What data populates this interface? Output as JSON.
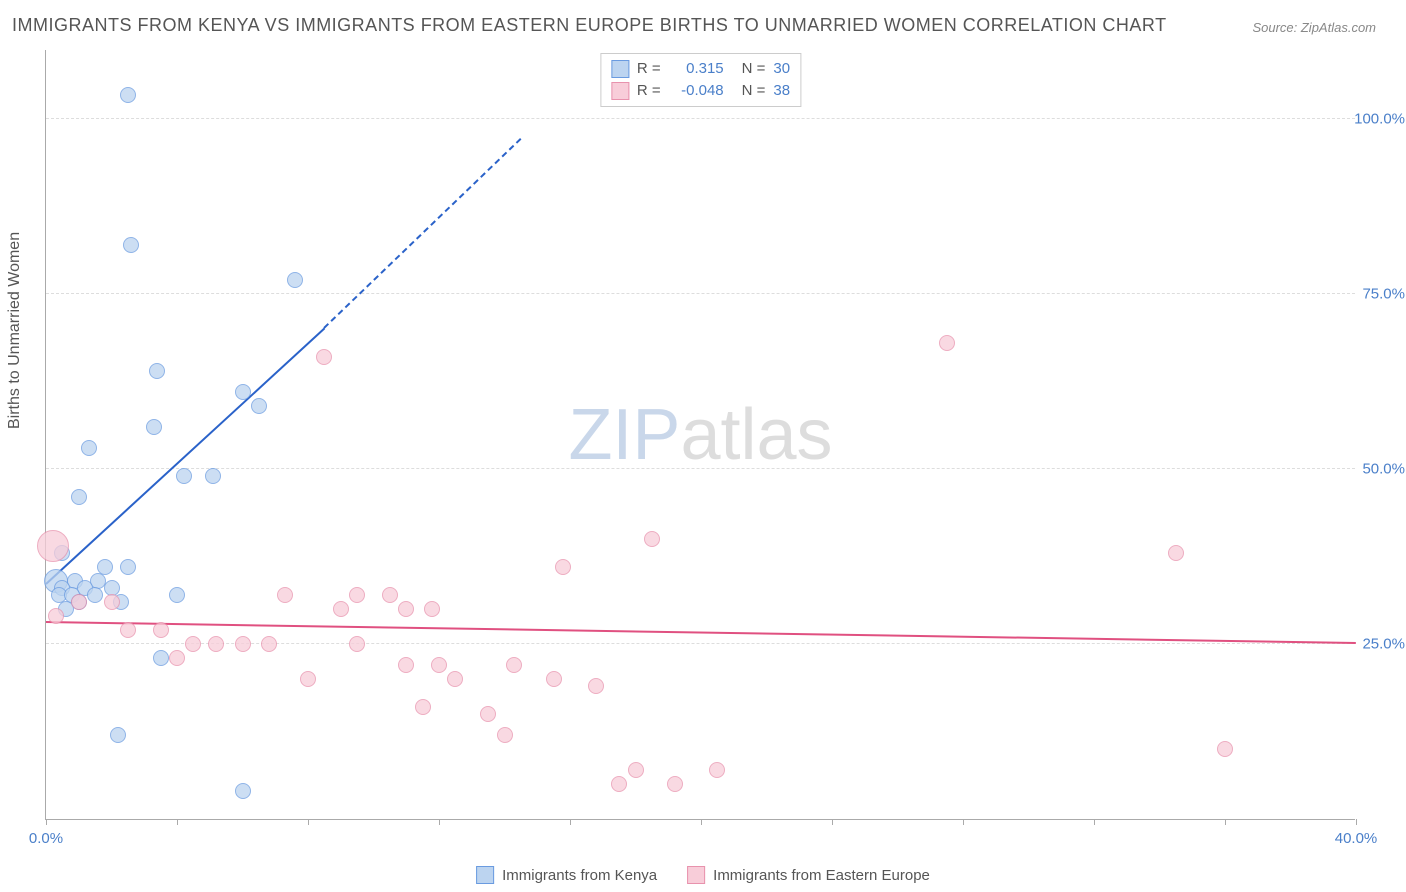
{
  "title": "IMMIGRANTS FROM KENYA VS IMMIGRANTS FROM EASTERN EUROPE BIRTHS TO UNMARRIED WOMEN CORRELATION CHART",
  "source": "Source: ZipAtlas.com",
  "watermark": {
    "zip": "ZIP",
    "atlas": "atlas"
  },
  "chart": {
    "type": "scatter",
    "y_axis_label": "Births to Unmarried Women",
    "background_color": "#ffffff",
    "grid_color": "#dddddd",
    "axis_color": "#aaaaaa",
    "label_color": "#555555",
    "tick_label_color": "#4a7fc9",
    "xlim": [
      0,
      40
    ],
    "ylim": [
      0,
      110
    ],
    "y_ticks": [
      {
        "v": 25,
        "label": "25.0%"
      },
      {
        "v": 50,
        "label": "50.0%"
      },
      {
        "v": 75,
        "label": "75.0%"
      },
      {
        "v": 100,
        "label": "100.0%"
      }
    ],
    "x_ticks": [
      {
        "v": 0,
        "label": "0.0%"
      },
      {
        "v": 4,
        "label": ""
      },
      {
        "v": 8,
        "label": ""
      },
      {
        "v": 12,
        "label": ""
      },
      {
        "v": 16,
        "label": ""
      },
      {
        "v": 20,
        "label": ""
      },
      {
        "v": 24,
        "label": ""
      },
      {
        "v": 28,
        "label": ""
      },
      {
        "v": 32,
        "label": ""
      },
      {
        "v": 36,
        "label": ""
      },
      {
        "v": 40,
        "label": "40.0%"
      }
    ],
    "legend_top": {
      "rows": [
        {
          "swatch_fill": "#bcd4f0",
          "swatch_border": "#6a9be0",
          "r": "0.315",
          "n": "30"
        },
        {
          "swatch_fill": "#f8cdd9",
          "swatch_border": "#e892ad",
          "r": "-0.048",
          "n": "38"
        }
      ],
      "r_prefix": "R =",
      "n_prefix": "N ="
    },
    "legend_bottom": [
      {
        "swatch_fill": "#bcd4f0",
        "swatch_border": "#6a9be0",
        "label": "Immigrants from Kenya"
      },
      {
        "swatch_fill": "#f8cdd9",
        "swatch_border": "#e892ad",
        "label": "Immigrants from Eastern Europe"
      }
    ],
    "series": [
      {
        "name": "kenya",
        "color_fill": "#bcd4f0",
        "color_border": "#6a9be0",
        "marker_opacity": 0.75,
        "default_r": 8,
        "points": [
          {
            "x": 2.5,
            "y": 103.5
          },
          {
            "x": 2.6,
            "y": 82
          },
          {
            "x": 7.6,
            "y": 77
          },
          {
            "x": 3.4,
            "y": 64
          },
          {
            "x": 6.0,
            "y": 61
          },
          {
            "x": 6.5,
            "y": 59
          },
          {
            "x": 3.3,
            "y": 56
          },
          {
            "x": 1.3,
            "y": 53
          },
          {
            "x": 4.2,
            "y": 49
          },
          {
            "x": 5.1,
            "y": 49
          },
          {
            "x": 1.0,
            "y": 46
          },
          {
            "x": 0.5,
            "y": 38
          },
          {
            "x": 1.8,
            "y": 36
          },
          {
            "x": 2.5,
            "y": 36
          },
          {
            "x": 0.3,
            "y": 34,
            "r": 12
          },
          {
            "x": 0.9,
            "y": 34
          },
          {
            "x": 1.6,
            "y": 34
          },
          {
            "x": 0.5,
            "y": 33
          },
          {
            "x": 1.2,
            "y": 33
          },
          {
            "x": 2.0,
            "y": 33
          },
          {
            "x": 0.4,
            "y": 32
          },
          {
            "x": 0.8,
            "y": 32
          },
          {
            "x": 1.5,
            "y": 32
          },
          {
            "x": 4.0,
            "y": 32
          },
          {
            "x": 1.0,
            "y": 31
          },
          {
            "x": 2.3,
            "y": 31
          },
          {
            "x": 0.6,
            "y": 30
          },
          {
            "x": 3.5,
            "y": 23
          },
          {
            "x": 2.2,
            "y": 12
          },
          {
            "x": 6.0,
            "y": 4
          }
        ],
        "trend": {
          "x1": 0,
          "y1": 33.5,
          "x2": 8.5,
          "y2": 70,
          "x2_dash": 14.5,
          "y2_dash": 97,
          "color": "#2a62c9",
          "width": 2
        }
      },
      {
        "name": "eastern_europe",
        "color_fill": "#f8cdd9",
        "color_border": "#e892ad",
        "marker_opacity": 0.75,
        "default_r": 8,
        "points": [
          {
            "x": 27.5,
            "y": 68
          },
          {
            "x": 8.5,
            "y": 66
          },
          {
            "x": 18.5,
            "y": 40
          },
          {
            "x": 0.2,
            "y": 39,
            "r": 16
          },
          {
            "x": 34.5,
            "y": 38
          },
          {
            "x": 15.8,
            "y": 36
          },
          {
            "x": 7.3,
            "y": 32
          },
          {
            "x": 9.5,
            "y": 32
          },
          {
            "x": 10.5,
            "y": 32
          },
          {
            "x": 1.0,
            "y": 31
          },
          {
            "x": 2.0,
            "y": 31
          },
          {
            "x": 9.0,
            "y": 30
          },
          {
            "x": 11.0,
            "y": 30
          },
          {
            "x": 11.8,
            "y": 30
          },
          {
            "x": 0.3,
            "y": 29
          },
          {
            "x": 2.5,
            "y": 27
          },
          {
            "x": 3.5,
            "y": 27
          },
          {
            "x": 4.5,
            "y": 25
          },
          {
            "x": 6.0,
            "y": 25
          },
          {
            "x": 6.8,
            "y": 25
          },
          {
            "x": 5.2,
            "y": 25
          },
          {
            "x": 9.5,
            "y": 25
          },
          {
            "x": 4.0,
            "y": 23
          },
          {
            "x": 11.0,
            "y": 22
          },
          {
            "x": 12.0,
            "y": 22
          },
          {
            "x": 14.3,
            "y": 22
          },
          {
            "x": 8.0,
            "y": 20
          },
          {
            "x": 12.5,
            "y": 20
          },
          {
            "x": 15.5,
            "y": 20
          },
          {
            "x": 16.8,
            "y": 19
          },
          {
            "x": 11.5,
            "y": 16
          },
          {
            "x": 13.5,
            "y": 15
          },
          {
            "x": 14.0,
            "y": 12
          },
          {
            "x": 36.0,
            "y": 10
          },
          {
            "x": 18.0,
            "y": 7
          },
          {
            "x": 20.5,
            "y": 7
          },
          {
            "x": 17.5,
            "y": 5
          },
          {
            "x": 19.2,
            "y": 5
          }
        ],
        "trend": {
          "x1": 0,
          "y1": 28,
          "x2": 40,
          "y2": 25,
          "color": "#e05080",
          "width": 2
        }
      }
    ]
  }
}
